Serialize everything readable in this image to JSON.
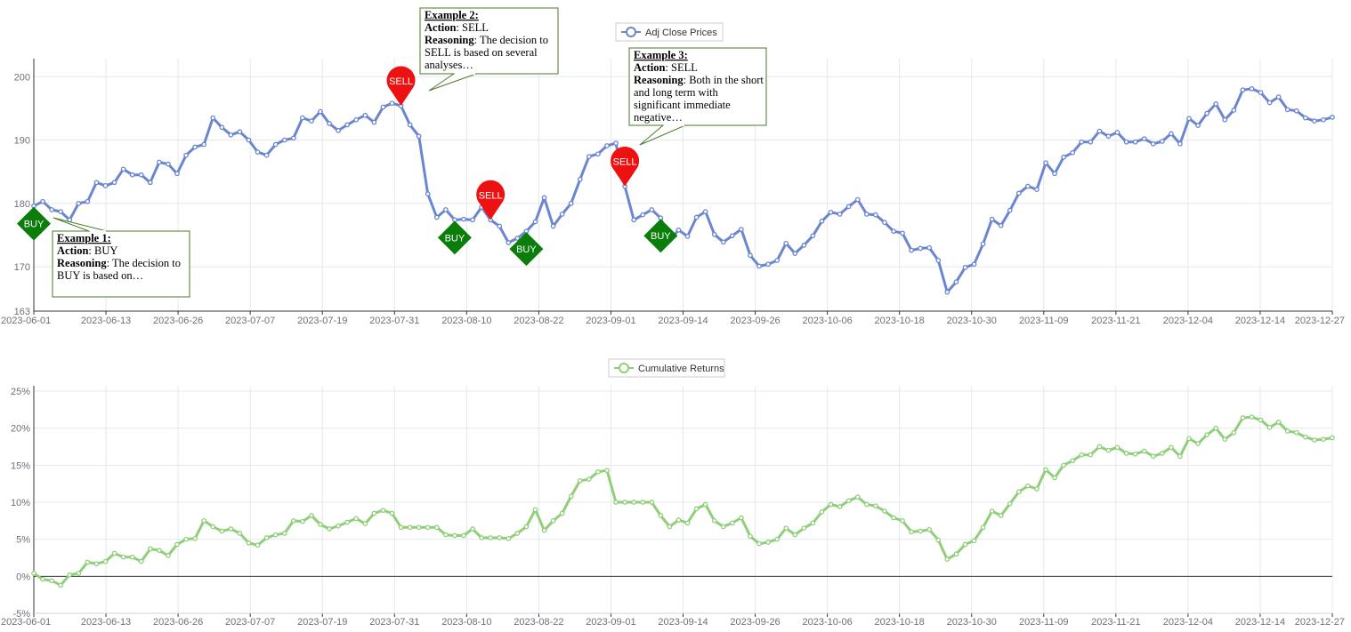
{
  "chart_data": [
    {
      "type": "line",
      "legend": "Adj Close Prices",
      "legend_position": "top-center",
      "x_ticks": [
        "2023-06-01",
        "2023-06-13",
        "2023-06-26",
        "2023-07-07",
        "2023-07-19",
        "2023-07-31",
        "2023-08-10",
        "2023-08-22",
        "2023-09-01",
        "2023-09-14",
        "2023-09-26",
        "2023-10-06",
        "2023-10-18",
        "2023-10-30",
        "2023-11-09",
        "2023-11-21",
        "2023-12-04",
        "2023-12-14",
        "2023-12-27"
      ],
      "y_ticks": [
        "163",
        "170",
        "180",
        "190",
        "200"
      ],
      "ylim": [
        163,
        202
      ],
      "grid": true,
      "color": "#6b86d0",
      "series": [
        {
          "name": "Adj Close Prices",
          "values": [
            179.6,
            180.3,
            179.0,
            178.7,
            177.4,
            180.0,
            180.3,
            183.3,
            182.8,
            183.3,
            185.4,
            184.5,
            184.5,
            183.3,
            186.5,
            186.2,
            184.7,
            187.6,
            188.9,
            189.3,
            193.5,
            192.0,
            190.8,
            191.3,
            190.0,
            188.1,
            187.6,
            189.3,
            190.0,
            190.3,
            193.5,
            193.0,
            194.5,
            192.6,
            191.5,
            192.4,
            193.2,
            193.9,
            192.8,
            195.2,
            195.8,
            195.4,
            192.4,
            190.6,
            181.5,
            177.8,
            179.0,
            177.4,
            177.5,
            177.4,
            179.4,
            177.4,
            176.4,
            173.8,
            174.5,
            175.6,
            177.1,
            180.9,
            176.4,
            178.3,
            180.0,
            183.8,
            187.4,
            187.8,
            189.1,
            189.5,
            182.7,
            177.4,
            178.2,
            179.0,
            177.7,
            174.2,
            175.8,
            174.8,
            177.8,
            178.7,
            175.1,
            173.9,
            174.9,
            175.9,
            171.8,
            170.1,
            170.4,
            171.0,
            173.7,
            172.1,
            173.4,
            174.9,
            177.2,
            178.6,
            178.3,
            179.5,
            180.6,
            178.3,
            178.2,
            177.0,
            175.6,
            175.3,
            172.6,
            172.9,
            173.0,
            171.0,
            166.0,
            167.6,
            169.9,
            170.4,
            173.6,
            177.5,
            176.5,
            178.9,
            181.6,
            182.7,
            182.2,
            186.4,
            184.7,
            187.3,
            188.0,
            189.7,
            189.7,
            191.4,
            190.6,
            191.2,
            189.7,
            189.7,
            190.2,
            189.4,
            189.8,
            191.0,
            189.4,
            193.4,
            192.3,
            194.2,
            195.7,
            193.2,
            194.7,
            197.9,
            198.1,
            197.5,
            195.9,
            196.8,
            194.8,
            194.6,
            193.5,
            193.0,
            193.2,
            193.6
          ]
        }
      ],
      "annotations": [
        {
          "kind": "BUY",
          "index": 0,
          "text": "BUY"
        },
        {
          "kind": "SELL",
          "index": 41,
          "text": "SELL"
        },
        {
          "kind": "BUY",
          "index": 47,
          "text": "BUY"
        },
        {
          "kind": "SELL",
          "index": 51,
          "text": "SELL"
        },
        {
          "kind": "BUY",
          "index": 55,
          "text": "BUY"
        },
        {
          "kind": "SELL",
          "index": 66,
          "text": "SELL"
        },
        {
          "kind": "BUY",
          "index": 70,
          "text": "BUY"
        }
      ]
    },
    {
      "type": "line",
      "legend": "Cumulative Returns",
      "legend_position": "top-center",
      "x_ticks": [
        "2023-06-01",
        "2023-06-13",
        "2023-06-26",
        "2023-07-07",
        "2023-07-19",
        "2023-07-31",
        "2023-08-10",
        "2023-08-22",
        "2023-09-01",
        "2023-09-14",
        "2023-09-26",
        "2023-10-06",
        "2023-10-18",
        "2023-10-30",
        "2023-11-09",
        "2023-11-21",
        "2023-12-04",
        "2023-12-14",
        "2023-12-27"
      ],
      "y_ticks": [
        "-5%",
        "0%",
        "5%",
        "10%",
        "15%",
        "20%",
        "25%"
      ],
      "ylim": [
        -5,
        25
      ],
      "grid": true,
      "color": "#90cf7a",
      "series": [
        {
          "name": "Cumulative Returns",
          "values": [
            0.4,
            -0.4,
            -0.6,
            -1.2,
            0.2,
            0.4,
            1.9,
            1.7,
            2.0,
            3.1,
            2.6,
            2.6,
            2.0,
            3.7,
            3.5,
            2.8,
            4.3,
            5.0,
            5.1,
            7.5,
            6.7,
            6.1,
            6.4,
            5.8,
            4.5,
            4.2,
            5.2,
            5.6,
            5.8,
            7.5,
            7.4,
            8.2,
            7.0,
            6.4,
            6.8,
            7.3,
            7.8,
            7.1,
            8.5,
            8.9,
            8.5,
            6.6,
            6.6,
            6.6,
            6.6,
            6.6,
            5.6,
            5.5,
            5.5,
            6.4,
            5.2,
            5.2,
            5.2,
            5.1,
            5.8,
            6.7,
            9.0,
            6.2,
            7.5,
            8.5,
            10.8,
            12.9,
            13.1,
            14.1,
            14.3,
            10.0,
            10.0,
            10.0,
            10.0,
            10.0,
            8.2,
            6.7,
            7.6,
            7.2,
            9.1,
            9.7,
            7.5,
            6.7,
            7.2,
            7.9,
            5.4,
            4.4,
            4.6,
            5.0,
            6.5,
            5.6,
            6.5,
            7.2,
            8.7,
            9.7,
            9.4,
            10.2,
            10.7,
            9.7,
            9.5,
            8.8,
            7.9,
            7.5,
            6.0,
            6.1,
            6.3,
            4.9,
            2.3,
            3.0,
            4.3,
            4.8,
            6.6,
            8.8,
            8.2,
            9.8,
            11.4,
            12.2,
            11.8,
            14.4,
            13.3,
            15.0,
            15.6,
            16.4,
            16.4,
            17.5,
            17.0,
            17.4,
            16.6,
            16.5,
            16.9,
            16.2,
            16.6,
            17.4,
            16.2,
            18.6,
            17.9,
            19.1,
            20.0,
            18.5,
            19.4,
            21.4,
            21.5,
            21.1,
            20.1,
            20.8,
            19.6,
            19.4,
            18.8,
            18.4,
            18.5,
            18.7
          ]
        }
      ]
    }
  ],
  "callouts": [
    {
      "title": "Example 1:",
      "action_label": "Action",
      "action": "BUY",
      "reasoning_label": "Reasoning",
      "reasoning_lines": [
        "The decision to",
        "BUY is based on…"
      ]
    },
    {
      "title": "Example 2:",
      "action_label": "Action",
      "action": "SELL",
      "reasoning_label": "Reasoning",
      "reasoning_lines": [
        "The decision to",
        "SELL  is based on several",
        "analyses…"
      ]
    },
    {
      "title": "Example 3:",
      "action_label": "Action",
      "action": "SELL",
      "reasoning_label": "Reasoning",
      "reasoning_lines": [
        "Both in the short",
        "and long term with",
        "significant immediate",
        "negative…"
      ]
    }
  ],
  "colors": {
    "buy": "#0a7d0a",
    "sell": "#ee1111",
    "callout_border": "#4a7a2a",
    "grid": "#e4e8ee",
    "axis_text": "#6e7079"
  }
}
